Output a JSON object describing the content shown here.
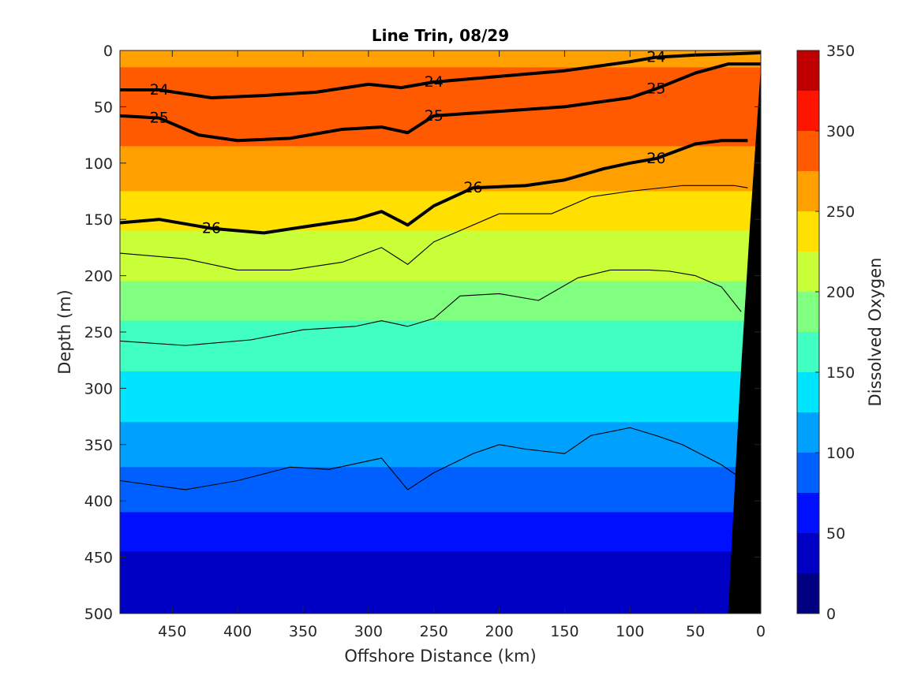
{
  "chart_data": {
    "type": "contour",
    "title": "Line Trin, 08/29",
    "xlabel": "Offshore Distance (km)",
    "ylabel": "Depth (m)",
    "colorbar_label": "Dissolved Oxygen",
    "xlim": [
      490,
      0
    ],
    "ylim": [
      500,
      0
    ],
    "x_ticks": [
      "450",
      "400",
      "350",
      "300",
      "250",
      "200",
      "150",
      "100",
      "50",
      "0"
    ],
    "x_tick_values": [
      450,
      400,
      350,
      300,
      250,
      200,
      150,
      100,
      50,
      0
    ],
    "y_ticks": [
      "0",
      "50",
      "100",
      "150",
      "200",
      "250",
      "300",
      "350",
      "400",
      "450",
      "500"
    ],
    "y_tick_values": [
      0,
      50,
      100,
      150,
      200,
      250,
      300,
      350,
      400,
      450,
      500
    ],
    "colorbar_ticks": [
      "0",
      "50",
      "100",
      "150",
      "200",
      "250",
      "300",
      "350"
    ],
    "colorbar_tick_values": [
      0,
      50,
      100,
      150,
      200,
      250,
      300,
      350
    ],
    "colorbar_levels": [
      0,
      25,
      50,
      75,
      100,
      125,
      150,
      175,
      200,
      225,
      250,
      275,
      300,
      325,
      350
    ],
    "colorbar_colors": [
      "#000080",
      "#0000c4",
      "#0010ff",
      "#0060ff",
      "#00a0ff",
      "#00e4ff",
      "#40ffc0",
      "#80ff80",
      "#c8ff38",
      "#ffe000",
      "#ffa000",
      "#ff5a00",
      "#ff1400",
      "#c00000"
    ],
    "oxygen_profile": {
      "depths": [
        0,
        50,
        100,
        150,
        200,
        250,
        300,
        350,
        400,
        450,
        500
      ],
      "values": [
        270,
        290,
        265,
        230,
        200,
        165,
        140,
        110,
        80,
        45,
        25
      ]
    },
    "density_contours": [
      {
        "level": "24",
        "bold": true,
        "x": [
          490,
          460,
          420,
          380,
          340,
          300,
          275,
          250,
          200,
          150,
          100,
          80,
          50,
          20,
          0
        ],
        "y": [
          35,
          35,
          42,
          40,
          37,
          30,
          33,
          28,
          23,
          18,
          10,
          6,
          4,
          3,
          2
        ]
      },
      {
        "level": "25",
        "bold": true,
        "x": [
          490,
          460,
          430,
          400,
          360,
          320,
          290,
          270,
          250,
          200,
          150,
          100,
          80,
          50,
          25,
          0
        ],
        "y": [
          58,
          60,
          75,
          80,
          78,
          70,
          68,
          73,
          58,
          54,
          50,
          42,
          34,
          20,
          12,
          12
        ]
      },
      {
        "level": "26",
        "bold": true,
        "x": [
          490,
          460,
          420,
          380,
          340,
          310,
          290,
          270,
          250,
          220,
          180,
          150,
          120,
          100,
          80,
          50,
          30,
          10
        ],
        "y": [
          153,
          150,
          158,
          162,
          155,
          150,
          143,
          155,
          138,
          122,
          120,
          115,
          105,
          100,
          96,
          83,
          80,
          80
        ]
      },
      {
        "level": "",
        "bold": false,
        "x": [
          490,
          440,
          400,
          360,
          320,
          290,
          270,
          250,
          230,
          200,
          160,
          130,
          100,
          60,
          20,
          10
        ],
        "y": [
          180,
          185,
          195,
          195,
          188,
          175,
          190,
          170,
          160,
          145,
          145,
          130,
          125,
          120,
          120,
          122
        ]
      },
      {
        "level": "",
        "bold": false,
        "x": [
          490,
          440,
          390,
          350,
          310,
          290,
          270,
          250,
          230,
          200,
          170,
          140,
          115,
          85,
          70,
          50,
          30,
          15
        ],
        "y": [
          258,
          262,
          257,
          248,
          245,
          240,
          245,
          238,
          218,
          216,
          222,
          202,
          195,
          195,
          196,
          200,
          210,
          232
        ]
      },
      {
        "level": "",
        "bold": false,
        "x": [
          490,
          440,
          400,
          360,
          330,
          290,
          270,
          250,
          220,
          200,
          180,
          150,
          130,
          100,
          80,
          60,
          30,
          15
        ],
        "y": [
          382,
          390,
          382,
          370,
          372,
          362,
          390,
          375,
          358,
          350,
          354,
          358,
          342,
          335,
          342,
          350,
          368,
          380
        ]
      }
    ]
  }
}
